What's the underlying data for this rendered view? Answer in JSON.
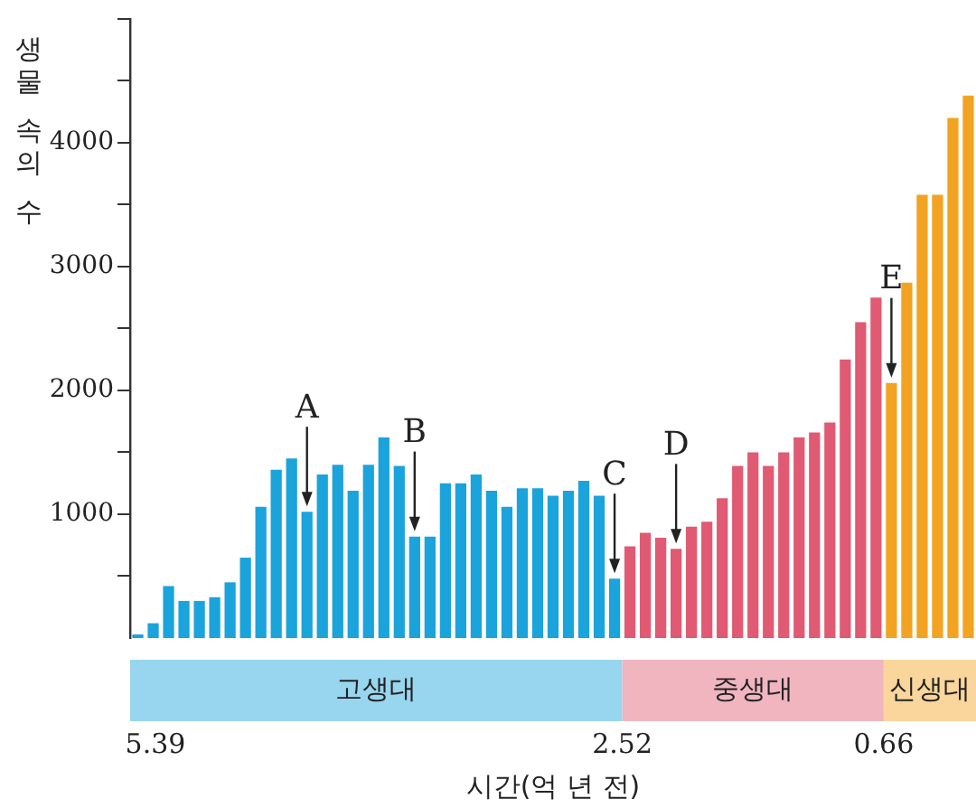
{
  "chart_data": {
    "type": "bar",
    "ylabel": "생물 속의 수",
    "xlabel": "시간(억 년 전)",
    "categories": [
      null,
      null,
      null,
      null,
      null,
      null,
      null,
      null,
      null,
      null,
      null,
      null,
      null,
      null,
      null,
      null,
      null,
      null,
      null,
      null,
      null,
      null,
      null,
      null,
      null,
      null,
      null,
      null,
      null,
      null,
      null,
      null,
      null,
      null,
      null,
      null,
      null,
      null,
      null,
      null,
      null,
      null,
      null,
      null,
      null,
      null,
      null,
      null,
      null,
      null,
      null,
      null,
      null,
      null,
      null
    ],
    "values": [
      30,
      120,
      420,
      300,
      300,
      330,
      450,
      650,
      1060,
      1360,
      1450,
      1020,
      1320,
      1400,
      1190,
      1400,
      1620,
      1390,
      820,
      820,
      1250,
      1250,
      1320,
      1190,
      1060,
      1210,
      1210,
      1150,
      1190,
      1270,
      1150,
      480,
      740,
      850,
      810,
      720,
      900,
      940,
      1130,
      1390,
      1500,
      1390,
      1500,
      1620,
      1660,
      1740,
      2250,
      2550,
      2750,
      2060,
      2870,
      3580,
      3580,
      4200,
      4380
    ],
    "colors": [
      "#1ba3dc",
      "#1ba3dc",
      "#1ba3dc",
      "#1ba3dc",
      "#1ba3dc",
      "#1ba3dc",
      "#1ba3dc",
      "#1ba3dc",
      "#1ba3dc",
      "#1ba3dc",
      "#1ba3dc",
      "#1ba3dc",
      "#1ba3dc",
      "#1ba3dc",
      "#1ba3dc",
      "#1ba3dc",
      "#1ba3dc",
      "#1ba3dc",
      "#1ba3dc",
      "#1ba3dc",
      "#1ba3dc",
      "#1ba3dc",
      "#1ba3dc",
      "#1ba3dc",
      "#1ba3dc",
      "#1ba3dc",
      "#1ba3dc",
      "#1ba3dc",
      "#1ba3dc",
      "#1ba3dc",
      "#1ba3dc",
      "#1ba3dc",
      "#df5a72",
      "#df5a72",
      "#df5a72",
      "#df5a72",
      "#df5a72",
      "#df5a72",
      "#df5a72",
      "#df5a72",
      "#df5a72",
      "#df5a72",
      "#df5a72",
      "#df5a72",
      "#df5a72",
      "#df5a72",
      "#df5a72",
      "#df5a72",
      "#df5a72",
      "#f3a322",
      "#f3a322",
      "#f3a322",
      "#f3a322",
      "#f3a322",
      "#f3a322"
    ],
    "value_labels": [
      null,
      null,
      null,
      null,
      null,
      null,
      null,
      null,
      null,
      null,
      null,
      "A",
      null,
      null,
      null,
      null,
      null,
      null,
      "B",
      null,
      null,
      null,
      null,
      null,
      null,
      null,
      null,
      null,
      null,
      null,
      null,
      "C",
      null,
      null,
      null,
      "D",
      null,
      null,
      null,
      null,
      null,
      null,
      null,
      null,
      null,
      null,
      null,
      null,
      null,
      "E",
      null,
      null,
      null,
      null,
      null
    ],
    "ylim": [
      0,
      5000
    ],
    "yticks": [
      {
        "value": 500,
        "label": null
      },
      1000,
      {
        "value": 1500,
        "label": null
      },
      2000,
      {
        "value": 2500,
        "label": null
      },
      3000,
      {
        "value": 3500,
        "label": null
      },
      4000,
      {
        "value": 4500,
        "label": null
      },
      {
        "value": 5000,
        "label": null
      }
    ],
    "grid": false,
    "legend": false,
    "annotations": [
      "고생대",
      "중생대",
      "신생대",
      "5.39",
      "2.52",
      "0.66"
    ]
  }
}
